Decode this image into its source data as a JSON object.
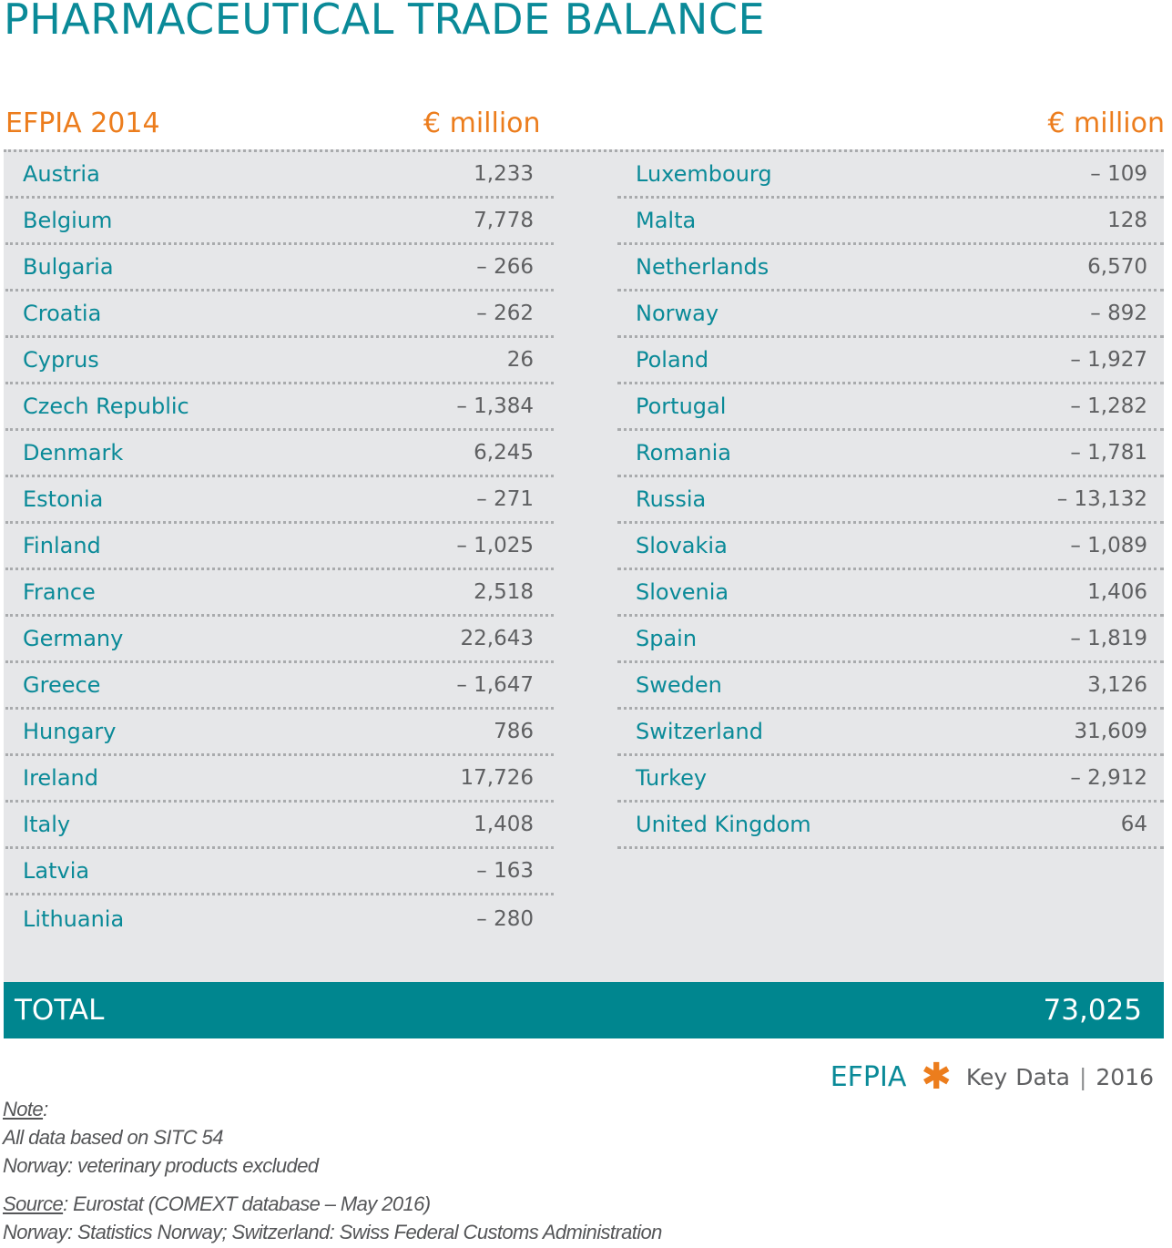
{
  "title": "PHARMACEUTICAL TRADE BALANCE",
  "header": {
    "label": "EFPIA 2014",
    "unit_left": "€ million",
    "unit_right": "€ million"
  },
  "left_rows": [
    {
      "country": "Austria",
      "value": "1,233"
    },
    {
      "country": "Belgium",
      "value": "7,778"
    },
    {
      "country": "Bulgaria",
      "value": "– 266"
    },
    {
      "country": "Croatia",
      "value": "– 262"
    },
    {
      "country": "Cyprus",
      "value": "26"
    },
    {
      "country": "Czech Republic",
      "value": "– 1,384"
    },
    {
      "country": "Denmark",
      "value": "6,245"
    },
    {
      "country": "Estonia",
      "value": "– 271"
    },
    {
      "country": "Finland",
      "value": "– 1,025"
    },
    {
      "country": "France",
      "value": "2,518"
    },
    {
      "country": "Germany",
      "value": "22,643"
    },
    {
      "country": "Greece",
      "value": "– 1,647"
    },
    {
      "country": "Hungary",
      "value": "786"
    },
    {
      "country": "Ireland",
      "value": "17,726"
    },
    {
      "country": "Italy",
      "value": "1,408"
    },
    {
      "country": "Latvia",
      "value": "– 163"
    },
    {
      "country": "Lithuania",
      "value": "– 280"
    }
  ],
  "right_rows": [
    {
      "country": "Luxembourg",
      "value": "– 109"
    },
    {
      "country": "Malta",
      "value": "128"
    },
    {
      "country": "Netherlands",
      "value": "6,570"
    },
    {
      "country": "Norway",
      "value": "– 892"
    },
    {
      "country": "Poland",
      "value": "– 1,927"
    },
    {
      "country": "Portugal",
      "value": "– 1,282"
    },
    {
      "country": "Romania",
      "value": "– 1,781"
    },
    {
      "country": "Russia",
      "value": "– 13,132"
    },
    {
      "country": "Slovakia",
      "value": "– 1,089"
    },
    {
      "country": "Slovenia",
      "value": "1,406"
    },
    {
      "country": "Spain",
      "value": "– 1,819"
    },
    {
      "country": "Sweden",
      "value": "3,126"
    },
    {
      "country": "Switzerland",
      "value": "31,609"
    },
    {
      "country": "Turkey",
      "value": "– 2,912"
    },
    {
      "country": "United Kingdom",
      "value": "64"
    }
  ],
  "total": {
    "label": "TOTAL",
    "value": "73,025"
  },
  "branding": {
    "org": "EFPIA",
    "key": "Key",
    "data": "Data",
    "year": "2016"
  },
  "notes": {
    "note_label": "Note",
    "note_lines": [
      "All data based on SITC 54",
      "Norway: veterinary products excluded"
    ],
    "source_label": "Source",
    "source_text": ": Eurostat (COMEXT database – May 2016)",
    "source_line2": "Norway: Statistics Norway; Switzerland: Swiss Federal Customs Administration"
  },
  "colors": {
    "teal": "#0a8a98",
    "orange": "#ec7d1d",
    "panel": "#e6e7e9",
    "total_bar": "#00868f"
  }
}
